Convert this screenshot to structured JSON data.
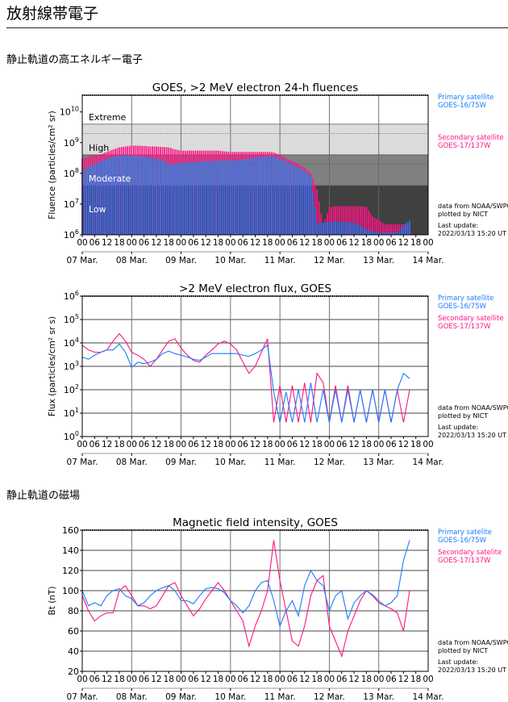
{
  "page": {
    "title": "放射線帯電子",
    "section_electrons": "静止軌道の高エネルギー電子",
    "section_magnetic": "静止軌道の磁場"
  },
  "colors": {
    "primary": "#1a7cff",
    "secondary": "#ff1485",
    "band_high": "#dcdcdc",
    "band_moderate": "#808080",
    "band_low": "#404040"
  },
  "chart_data": [
    {
      "type": "bar",
      "title": "GOES, >2 MeV electron 24-h fluences",
      "ylabel": "Fluence (particles/cm² sr)",
      "yscale": "log",
      "ylim": [
        1000000.0,
        35000000000.0
      ],
      "ytick_labels": [
        "10^6",
        "10^7",
        "10^8",
        "10^9",
        "10^10"
      ],
      "xtick_labels": [
        "00",
        "06",
        "12",
        "18"
      ],
      "xtick_final": "00",
      "date_labels": [
        "07 Mar.",
        "08 Mar.",
        "09 Mar.",
        "10 Mar.",
        "11 Mar.",
        "12 Mar.",
        "13 Mar.",
        "14 Mar."
      ],
      "levels": [
        {
          "label": "Extreme",
          "from": 4000000000.0
        },
        {
          "label": "High",
          "from": 400000000.0,
          "to": 4000000000.0
        },
        {
          "label": "Moderate",
          "from": 40000000.0,
          "to": 400000000.0
        },
        {
          "label": "Low",
          "to": 40000000.0
        }
      ],
      "legend": {
        "primary": [
          "Primary satellite",
          "GOES-16/75W"
        ],
        "secondary": [
          "Secondary satellite",
          "GOES-17/137W"
        ]
      },
      "credit": [
        "data from NOAA/SWPC",
        "plotted by NICT"
      ],
      "update": [
        "Last update:",
        "2022/03/13 15:20 UT"
      ],
      "x": [
        "03-07 00",
        "03-07 03",
        "03-07 06",
        "03-07 09",
        "03-07 12",
        "03-07 15",
        "03-07 18",
        "03-07 21",
        "03-08 00",
        "03-08 03",
        "03-08 06",
        "03-08 09",
        "03-08 12",
        "03-08 15",
        "03-08 18",
        "03-08 21",
        "03-09 00",
        "03-09 03",
        "03-09 06",
        "03-09 09",
        "03-09 12",
        "03-09 15",
        "03-09 18",
        "03-09 21",
        "03-10 00",
        "03-10 03",
        "03-10 06",
        "03-10 09",
        "03-10 12",
        "03-10 15",
        "03-10 18",
        "03-10 21",
        "03-11 00",
        "03-11 03",
        "03-11 06",
        "03-11 09",
        "03-11 12",
        "03-11 15",
        "03-11 18",
        "03-11 21",
        "03-12 00",
        "03-12 03",
        "03-12 06",
        "03-12 09",
        "03-12 12",
        "03-12 15",
        "03-12 18",
        "03-12 21",
        "03-13 00",
        "03-13 03",
        "03-13 06",
        "03-13 09",
        "03-13 12",
        "03-13 15"
      ],
      "series": [
        {
          "name": "GOES-17/137W",
          "color": "#ff1485",
          "values": [
            300000000.0,
            350000000.0,
            400000000.0,
            420000000.0,
            500000000.0,
            600000000.0,
            700000000.0,
            750000000.0,
            800000000.0,
            800000000.0,
            780000000.0,
            750000000.0,
            750000000.0,
            720000000.0,
            700000000.0,
            600000000.0,
            550000000.0,
            550000000.0,
            550000000.0,
            550000000.0,
            550000000.0,
            550000000.0,
            550000000.0,
            520000000.0,
            500000000.0,
            500000000.0,
            500000000.0,
            500000000.0,
            500000000.0,
            500000000.0,
            500000000.0,
            480000000.0,
            400000000.0,
            300000000.0,
            250000000.0,
            200000000.0,
            150000000.0,
            100000000.0,
            30000000.0,
            2000000.0,
            8000000.0,
            8500000.0,
            8500000.0,
            8500000.0,
            8500000.0,
            8500000.0,
            8000000.0,
            4000000.0,
            3000000.0,
            2200000.0,
            2200000.0,
            2200000.0,
            2200000.0,
            2400000.0
          ]
        },
        {
          "name": "GOES-16/75W",
          "color": "#1a7cff",
          "values": [
            120000000.0,
            160000000.0,
            200000000.0,
            250000000.0,
            300000000.0,
            350000000.0,
            380000000.0,
            380000000.0,
            380000000.0,
            360000000.0,
            350000000.0,
            320000000.0,
            300000000.0,
            260000000.0,
            200000000.0,
            200000000.0,
            220000000.0,
            230000000.0,
            230000000.0,
            240000000.0,
            250000000.0,
            250000000.0,
            260000000.0,
            260000000.0,
            260000000.0,
            270000000.0,
            280000000.0,
            300000000.0,
            320000000.0,
            340000000.0,
            360000000.0,
            350000000.0,
            300000000.0,
            240000000.0,
            200000000.0,
            150000000.0,
            120000000.0,
            80000000.0,
            2500000.0,
            2500000.0,
            2600000.0,
            2700000.0,
            2600000.0,
            2600000.0,
            2500000.0,
            2000000.0,
            1500000.0,
            1300000.0,
            1200000.0,
            1200000.0,
            1200000.0,
            1200000.0,
            2000000.0,
            3000000.0
          ]
        }
      ]
    },
    {
      "type": "line",
      "title": ">2 MeV electron flux, GOES",
      "ylabel": "Flux (particles/cm² sr s)",
      "yscale": "log",
      "ylim": [
        1,
        1000000.0
      ],
      "ytick_labels": [
        "10^0",
        "10^1",
        "10^2",
        "10^3",
        "10^4",
        "10^5",
        "10^6"
      ],
      "xtick_labels": [
        "00",
        "06",
        "12",
        "18"
      ],
      "xtick_final": "00",
      "date_labels": [
        "07 Mar.",
        "08 Mar.",
        "09 Mar.",
        "10 Mar.",
        "11 Mar.",
        "12 Mar.",
        "13 Mar.",
        "14 Mar."
      ],
      "legend": {
        "primary": [
          "Primary satellite",
          "GOES-16/75W"
        ],
        "secondary": [
          "Secondary satellite",
          "GOES-17/137W"
        ]
      },
      "credit": [
        "data from NOAA/SWPC",
        "plotted by NICT"
      ],
      "update": [
        "Last update:",
        "2022/03/13 15:20 UT"
      ],
      "grid": true,
      "x": [
        "03-07 00",
        "03-07 03",
        "03-07 06",
        "03-07 09",
        "03-07 12",
        "03-07 15",
        "03-07 18",
        "03-07 21",
        "03-08 00",
        "03-08 03",
        "03-08 06",
        "03-08 09",
        "03-08 12",
        "03-08 15",
        "03-08 18",
        "03-08 21",
        "03-09 00",
        "03-09 03",
        "03-09 06",
        "03-09 09",
        "03-09 12",
        "03-09 15",
        "03-09 18",
        "03-09 21",
        "03-10 00",
        "03-10 03",
        "03-10 06",
        "03-10 09",
        "03-10 12",
        "03-10 15",
        "03-10 18",
        "03-10 21",
        "03-11 00",
        "03-11 03",
        "03-11 06",
        "03-11 09",
        "03-11 12",
        "03-11 15",
        "03-11 18",
        "03-11 21",
        "03-12 00",
        "03-12 03",
        "03-12 06",
        "03-12 09",
        "03-12 12",
        "03-12 15",
        "03-12 18",
        "03-12 21",
        "03-13 00",
        "03-13 03",
        "03-13 06",
        "03-13 09",
        "03-13 12",
        "03-13 15"
      ],
      "series": [
        {
          "name": "GOES-17/137W",
          "color": "#ff1485",
          "values": [
            8000,
            5000,
            4000,
            4000,
            5000,
            12000,
            25000,
            12000,
            4000,
            3000,
            2000,
            1000,
            2000,
            5000,
            12000,
            15000,
            6000,
            3000,
            1800,
            1500,
            3000,
            5000,
            9000,
            12000,
            9000,
            5000,
            1500,
            500,
            1000,
            4000,
            15000,
            4,
            150,
            4,
            150,
            4,
            200,
            4,
            500,
            200,
            4,
            150,
            4,
            150,
            4,
            100,
            4,
            100,
            4,
            100,
            4,
            100,
            4,
            100
          ]
        },
        {
          "name": "GOES-16/75W",
          "color": "#1a7cff",
          "values": [
            2500,
            2000,
            3000,
            4000,
            5000,
            5000,
            9000,
            4000,
            900,
            1500,
            1300,
            1500,
            2000,
            3500,
            4500,
            3500,
            3000,
            2500,
            2000,
            1800,
            2500,
            3500,
            3500,
            3500,
            3500,
            3500,
            3000,
            2700,
            3500,
            5000,
            8000,
            80,
            4,
            80,
            4,
            100,
            4,
            200,
            4,
            100,
            4,
            100,
            4,
            100,
            4,
            100,
            4,
            100,
            4,
            100,
            4,
            100,
            500,
            300
          ]
        }
      ]
    },
    {
      "type": "line",
      "title": "Magnetic field intensity, GOES",
      "ylabel": "Bt (nT)",
      "ylim": [
        20,
        160
      ],
      "ytick_labels": [
        "20",
        "40",
        "60",
        "80",
        "100",
        "120",
        "140",
        "160"
      ],
      "xtick_labels": [
        "00",
        "06",
        "12",
        "18"
      ],
      "xtick_final": "00",
      "date_labels": [
        "07 Mar.",
        "08 Mar.",
        "09 Mar.",
        "10 Mar.",
        "11 Mar.",
        "12 Mar.",
        "13 Mar.",
        "14 Mar."
      ],
      "legend": {
        "primary": [
          "Primary satelite",
          "GOES-16/75W"
        ],
        "secondary": [
          "Secondary satelite",
          "GOES-17/137W"
        ]
      },
      "credit": [
        "data from NOAA/SWPC",
        "plotted by NICT"
      ],
      "update": [
        "Last update:",
        "2022/03/13 15:20 UT"
      ],
      "grid": true,
      "x": [
        "03-07 00",
        "03-07 03",
        "03-07 06",
        "03-07 09",
        "03-07 12",
        "03-07 15",
        "03-07 18",
        "03-07 21",
        "03-08 00",
        "03-08 03",
        "03-08 06",
        "03-08 09",
        "03-08 12",
        "03-08 15",
        "03-08 18",
        "03-08 21",
        "03-09 00",
        "03-09 03",
        "03-09 06",
        "03-09 09",
        "03-09 12",
        "03-09 15",
        "03-09 18",
        "03-09 21",
        "03-10 00",
        "03-10 03",
        "03-10 06",
        "03-10 09",
        "03-10 12",
        "03-10 15",
        "03-10 18",
        "03-10 21",
        "03-11 00",
        "03-11 03",
        "03-11 06",
        "03-11 09",
        "03-11 12",
        "03-11 15",
        "03-11 18",
        "03-11 21",
        "03-12 00",
        "03-12 03",
        "03-12 06",
        "03-12 09",
        "03-12 12",
        "03-12 15",
        "03-12 18",
        "03-12 21",
        "03-13 00",
        "03-13 03",
        "03-13 06",
        "03-13 09",
        "03-13 12",
        "03-13 15"
      ],
      "series": [
        {
          "name": "GOES-17/137W",
          "color": "#ff1485",
          "values": [
            95,
            80,
            70,
            75,
            78,
            78,
            100,
            105,
            95,
            85,
            85,
            82,
            85,
            95,
            105,
            108,
            95,
            85,
            75,
            82,
            92,
            100,
            108,
            100,
            90,
            80,
            70,
            45,
            65,
            80,
            100,
            150,
            110,
            80,
            50,
            45,
            65,
            95,
            110,
            115,
            65,
            50,
            35,
            60,
            75,
            90,
            100,
            95,
            88,
            85,
            82,
            78,
            60,
            100
          ]
        },
        {
          "name": "GOES-16/75W",
          "color": "#1a7cff",
          "values": [
            100,
            85,
            88,
            85,
            95,
            100,
            102,
            95,
            92,
            85,
            88,
            95,
            100,
            103,
            105,
            100,
            90,
            90,
            87,
            95,
            102,
            103,
            102,
            98,
            90,
            85,
            78,
            85,
            100,
            108,
            110,
            90,
            65,
            80,
            90,
            75,
            105,
            120,
            110,
            105,
            80,
            95,
            100,
            72,
            88,
            95,
            100,
            96,
            90,
            85,
            88,
            95,
            130,
            150
          ]
        }
      ]
    }
  ]
}
